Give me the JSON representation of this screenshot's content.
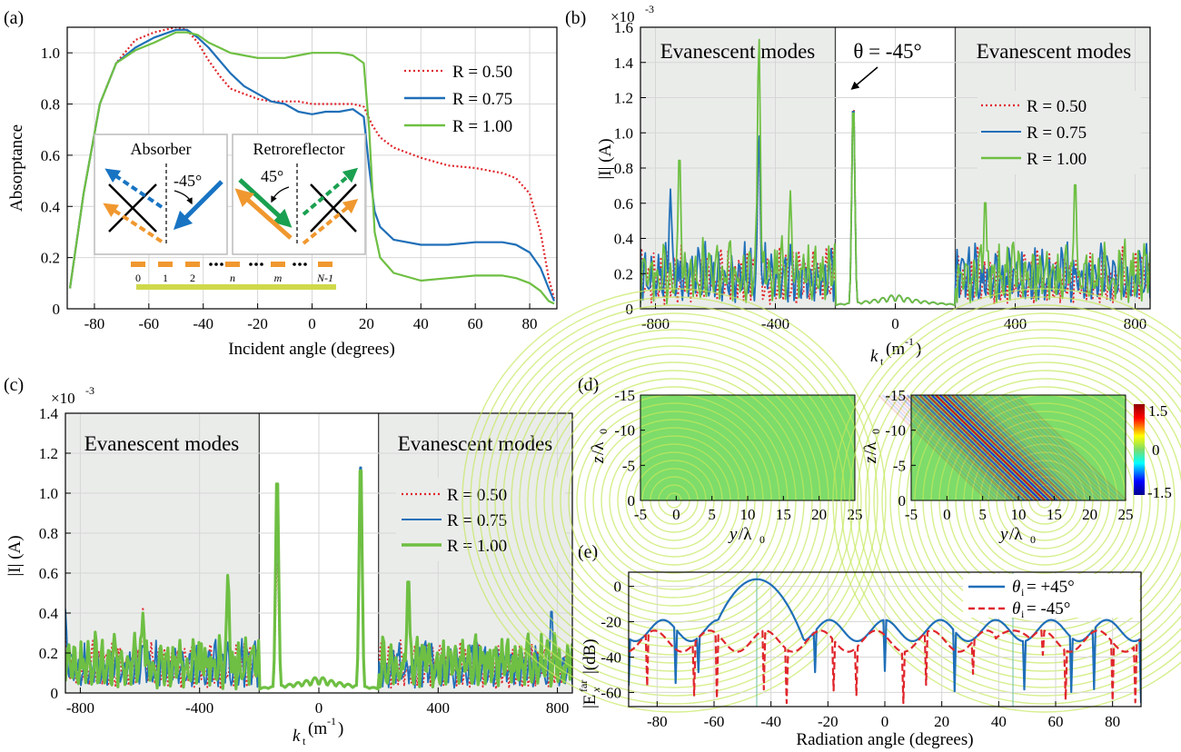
{
  "panel_labels": [
    "(a)",
    "(b)",
    "(c)",
    "(d)",
    "(e)"
  ],
  "colors": {
    "r050": "#e0262c",
    "r075": "#1f6fb8",
    "r100": "#6ebf43",
    "evanescent_shade": "#eaecea",
    "grid": "#d6d6d6",
    "field_bg": "#7ddc6a",
    "arrow_orange": "#f0982f",
    "arrow_green": "#1aa050",
    "arrow_blue": "#1874c3",
    "strip": "#cfd94a"
  },
  "chart_data": [
    {
      "id": "a",
      "type": "line",
      "xlabel": "Incident angle (degrees)",
      "ylabel": "Absorptance",
      "xlim": [
        -90,
        90
      ],
      "ylim": [
        0,
        1.1
      ],
      "xticks": [
        -80,
        -60,
        -40,
        -20,
        0,
        20,
        40,
        60,
        80
      ],
      "yticks": [
        0,
        0.2,
        0.4,
        0.6,
        0.8,
        1.0
      ],
      "ytick_labels": [
        "0",
        "0.2",
        "0.4",
        "0.6",
        "0.8",
        "1.0"
      ],
      "grid": true,
      "legend_position": "right",
      "series": [
        {
          "name": "R = 0.50",
          "style": "dotted",
          "color": "#e0262c",
          "x": [
            -89,
            -84,
            -78,
            -72,
            -65,
            -58,
            -50,
            -46,
            -42,
            -38,
            -34,
            -30,
            -25,
            -20,
            -15,
            -10,
            -5,
            0,
            5,
            10,
            15,
            19,
            22,
            25,
            30,
            40,
            50,
            60,
            70,
            75,
            80,
            84,
            87,
            89
          ],
          "y": [
            0.08,
            0.45,
            0.8,
            0.96,
            1.05,
            1.08,
            1.1,
            1.09,
            1.04,
            0.97,
            0.91,
            0.86,
            0.84,
            0.82,
            0.81,
            0.81,
            0.81,
            0.8,
            0.8,
            0.8,
            0.8,
            0.79,
            0.72,
            0.67,
            0.63,
            0.59,
            0.56,
            0.55,
            0.53,
            0.51,
            0.45,
            0.3,
            0.12,
            0.04
          ]
        },
        {
          "name": "R = 0.75",
          "style": "solid",
          "color": "#1f6fb8",
          "x": [
            -89,
            -84,
            -78,
            -72,
            -65,
            -58,
            -50,
            -46,
            -42,
            -38,
            -34,
            -30,
            -25,
            -20,
            -15,
            -10,
            -5,
            0,
            5,
            10,
            15,
            19,
            21,
            23,
            25,
            30,
            40,
            50,
            60,
            70,
            75,
            80,
            84,
            87,
            89
          ],
          "y": [
            0.08,
            0.45,
            0.8,
            0.96,
            1.02,
            1.06,
            1.09,
            1.09,
            1.06,
            1.02,
            0.97,
            0.92,
            0.87,
            0.84,
            0.81,
            0.8,
            0.77,
            0.76,
            0.77,
            0.77,
            0.78,
            0.75,
            0.55,
            0.38,
            0.32,
            0.27,
            0.25,
            0.25,
            0.26,
            0.26,
            0.25,
            0.22,
            0.16,
            0.08,
            0.03
          ]
        },
        {
          "name": "R = 1.00",
          "style": "solid",
          "color": "#6ebf43",
          "x": [
            -89,
            -84,
            -78,
            -72,
            -65,
            -58,
            -50,
            -46,
            -42,
            -38,
            -34,
            -30,
            -25,
            -20,
            -15,
            -10,
            -5,
            0,
            5,
            10,
            15,
            19,
            21,
            23,
            25,
            30,
            40,
            50,
            60,
            70,
            75,
            80,
            84,
            87,
            89
          ],
          "y": [
            0.08,
            0.45,
            0.8,
            0.96,
            1.01,
            1.04,
            1.08,
            1.08,
            1.07,
            1.04,
            1.02,
            1.0,
            0.99,
            0.98,
            0.98,
            0.98,
            0.99,
            1.0,
            1.0,
            1.0,
            0.99,
            0.96,
            0.7,
            0.3,
            0.2,
            0.14,
            0.11,
            0.12,
            0.13,
            0.13,
            0.12,
            0.1,
            0.07,
            0.03,
            0.02
          ]
        }
      ],
      "inset": {
        "absorber_title": "Absorber",
        "absorber_angle": "-45°",
        "retro_title": "Retroreflector",
        "retro_angle": "45°",
        "array_labels": [
          "0",
          "1",
          "2",
          "n",
          "m",
          "N-1"
        ]
      }
    },
    {
      "id": "b",
      "type": "line",
      "xlabel_main": "k",
      "xlabel_sub": "t",
      "xlabel_unit": "(m",
      "xlabel_unit_sup": "-1",
      "xlabel_unit_close": ")",
      "ylabel": "|I| (A)",
      "yscale_base": "×10",
      "yscale_exp": "-3",
      "xlim": [
        -850,
        850
      ],
      "ylim": [
        0,
        1.6
      ],
      "xticks": [
        -800,
        -400,
        0,
        400,
        800
      ],
      "yticks": [
        0,
        0.2,
        0.4,
        0.6,
        0.8,
        1.0,
        1.2,
        1.4,
        1.6
      ],
      "ytick_labels": [
        "0",
        "0.2",
        "0.4",
        "0.6",
        "0.8",
        "1.0",
        "1.2",
        "1.4",
        "1.6"
      ],
      "evanescent_limits": [
        -200,
        200
      ],
      "evanescent_label": "Evanescent modes",
      "annotation": "θ = -45°",
      "annotation_x": -140,
      "grid": true,
      "legend_position": "right",
      "series": [
        {
          "name": "R = 0.50",
          "style": "dotted",
          "color": "#e0262c",
          "peaks": [
            [
              -140,
              1.22
            ],
            [
              -455,
              0.96
            ]
          ],
          "base": 0.26
        },
        {
          "name": "R = 0.75",
          "style": "solid",
          "color": "#1f6fb8",
          "peaks": [
            [
              -140,
              1.21
            ],
            [
              -455,
              1.0
            ],
            [
              -750,
              0.68
            ]
          ],
          "base": 0.28
        },
        {
          "name": "R = 1.00",
          "style": "solid",
          "color": "#6ebf43",
          "peaks": [
            [
              -140,
              1.2
            ],
            [
              -455,
              1.56
            ],
            [
              -720,
              0.91
            ],
            [
              600,
              0.76
            ],
            [
              300,
              0.65
            ],
            [
              -350,
              0.67
            ]
          ],
          "base": 0.3
        }
      ]
    },
    {
      "id": "c",
      "type": "line",
      "xlabel_main": "k",
      "xlabel_sub": "t",
      "xlabel_unit": "(m",
      "xlabel_unit_sup": "-1",
      "xlabel_unit_close": ")",
      "ylabel": "|I| (A)",
      "yscale_base": "×10",
      "yscale_exp": "-3",
      "xlim": [
        -850,
        850
      ],
      "ylim": [
        0,
        1.4
      ],
      "xticks": [
        -800,
        -400,
        0,
        400,
        800
      ],
      "yticks": [
        0,
        0.2,
        0.4,
        0.6,
        0.8,
        1.0,
        1.2,
        1.4
      ],
      "ytick_labels": [
        "0",
        "0.2",
        "0.4",
        "0.6",
        "0.8",
        "1.0",
        "1.2",
        "1.4"
      ],
      "evanescent_limits": [
        -200,
        200
      ],
      "evanescent_label": "Evanescent modes",
      "grid": true,
      "legend_position": "right",
      "series": [
        {
          "name": "R = 0.50",
          "style": "dotted",
          "color": "#e0262c",
          "peaks": [
            [
              140,
              1.22
            ],
            [
              -140,
              0.7
            ],
            [
              -590,
              0.43
            ]
          ],
          "base": 0.2
        },
        {
          "name": "R = 0.75",
          "style": "solid",
          "color": "#1f6fb8",
          "peaks": [
            [
              140,
              1.22
            ],
            [
              -140,
              0.85
            ],
            [
              -850,
              0.42
            ],
            [
              780,
              0.44
            ]
          ],
          "base": 0.2
        },
        {
          "name": "R = 1.00",
          "style": "solid",
          "color": "#6ebf43",
          "peaks": [
            [
              140,
              1.2
            ],
            [
              -140,
              1.13
            ],
            [
              300,
              0.6
            ],
            [
              -305,
              0.6
            ],
            [
              -590,
              0.4
            ]
          ],
          "base": 0.22
        }
      ]
    },
    {
      "id": "d",
      "type": "heatmap",
      "xlabel_main": "y",
      "xlabel_slash": "/λ",
      "xlabel_sub": "0",
      "ylabel_main": "z",
      "ylabel_slash": "/λ",
      "ylabel_sub": "0",
      "xlim": [
        -5,
        25
      ],
      "ylim": [
        0,
        -15
      ],
      "xticks": [
        -5,
        0,
        5,
        10,
        15,
        20,
        25
      ],
      "yticks": [
        0,
        -5,
        -10,
        -15
      ],
      "colorbar_ticks": [
        "1.5",
        "0",
        "-1.5"
      ],
      "colorbar_range": [
        -1.5,
        1.5
      ]
    },
    {
      "id": "e",
      "type": "line",
      "xlabel": "Radiation angle (degrees)",
      "ylabel_prefix": "|E",
      "ylabel_sub": "x",
      "ylabel_sup": "far",
      "ylabel_suffix": "|(dB)",
      "xlim": [
        -90,
        90
      ],
      "ylim": [
        -68,
        8
      ],
      "xticks": [
        -80,
        -60,
        -40,
        -20,
        0,
        20,
        40,
        60,
        80
      ],
      "yticks": [
        0,
        -20,
        -40,
        -60
      ],
      "vlines": [
        -45,
        45
      ],
      "grid": true,
      "legend_position": "top-right",
      "series": [
        {
          "name_prefix": "θ",
          "name_sub": "i",
          "name_suffix": "= +45°",
          "style": "solid",
          "color": "#1f6fb8",
          "peak_x": -45,
          "peak_y": 4,
          "base": -22
        },
        {
          "name_prefix": "θ",
          "name_sub": "i",
          "name_suffix": "= -45°",
          "style": "dashed",
          "color": "#e0262c",
          "peak_x": 45,
          "peak_y": -25,
          "base": -28
        }
      ]
    }
  ]
}
